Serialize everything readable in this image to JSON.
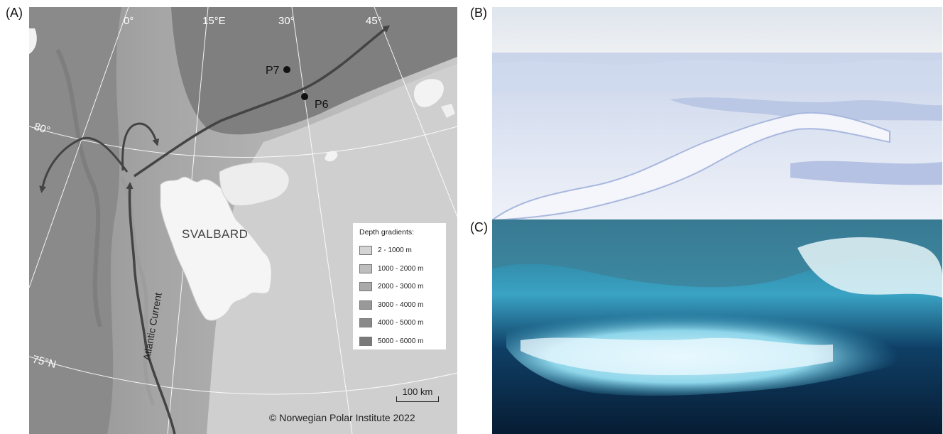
{
  "panels": {
    "a_label": "(A)",
    "b_label": "(B)",
    "c_label": "(C)"
  },
  "map": {
    "graticule": {
      "lon_0": "0°",
      "lon_15": "15°E",
      "lon_30": "30°",
      "lon_45": "45°",
      "lat_80": "80°",
      "lat_75": "75°N"
    },
    "stations": {
      "p7": "P7",
      "p6": "P6"
    },
    "region_label": "SVALBARD",
    "current_label": "Atlantic Current",
    "legend": {
      "title": "Depth gradients:",
      "items": [
        {
          "label": "2 - 1000 m",
          "color": "#d4d4d4"
        },
        {
          "label": "1000 - 2000 m",
          "color": "#bebebe"
        },
        {
          "label": "2000 - 3000 m",
          "color": "#aaaaaa"
        },
        {
          "label": "3000 - 4000 m",
          "color": "#999999"
        },
        {
          "label": "4000 - 5000 m",
          "color": "#8a8a8a"
        },
        {
          "label": "5000 - 6000 m",
          "color": "#7a7a7a"
        }
      ]
    },
    "scale_bar": "100 km",
    "copyright": "© Norwegian Polar Institute 2022"
  },
  "photos": {
    "b_description": "sea-ice-surface-photo",
    "c_description": "under-ice-photo"
  }
}
